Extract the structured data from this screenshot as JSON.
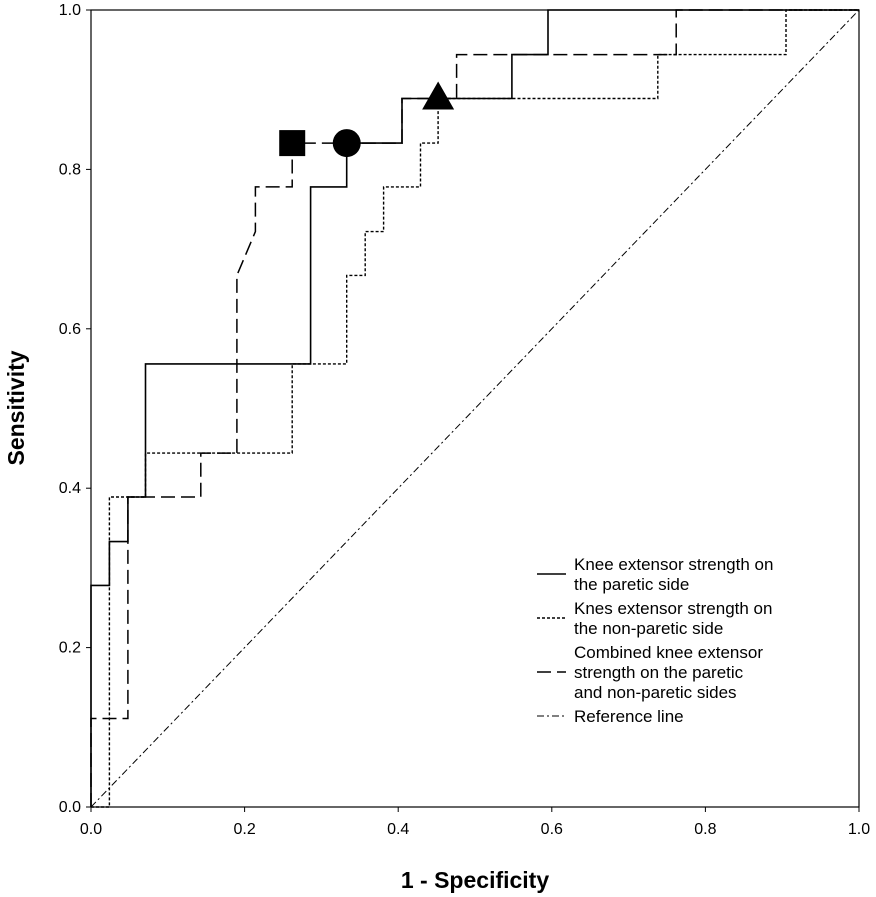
{
  "chart_data": {
    "type": "line",
    "title": "",
    "xlabel": "1 - Specificity",
    "ylabel": "Sensitivity",
    "xlim": [
      0.0,
      1.0
    ],
    "ylim": [
      0.0,
      1.0
    ],
    "xticks": [
      "0.0",
      "0.2",
      "0.4",
      "0.6",
      "0.8",
      "1.0"
    ],
    "yticks": [
      "0.0",
      "0.2",
      "0.4",
      "0.6",
      "0.8",
      "1.0"
    ],
    "grid": false,
    "legend_position": "bottom-right",
    "series": [
      {
        "name": "Knee extensor strength on the paretic side",
        "style": "solid",
        "color": "#000000",
        "x": [
          0.0,
          0.0,
          0.024,
          0.024,
          0.048,
          0.048,
          0.071,
          0.071,
          0.286,
          0.286,
          0.333,
          0.333,
          0.405,
          0.405,
          0.548,
          0.548,
          0.595,
          0.595,
          1.0
        ],
        "y": [
          0.0,
          0.278,
          0.278,
          0.333,
          0.333,
          0.389,
          0.389,
          0.556,
          0.556,
          0.778,
          0.778,
          0.833,
          0.833,
          0.889,
          0.889,
          0.944,
          0.944,
          1.0,
          1.0
        ]
      },
      {
        "name": "Knes extensor strength on the non-paretic side",
        "style": "dotted",
        "color": "#000000",
        "x": [
          0.0,
          0.024,
          0.024,
          0.071,
          0.071,
          0.143,
          0.143,
          0.262,
          0.262,
          0.333,
          0.333,
          0.357,
          0.357,
          0.381,
          0.381,
          0.429,
          0.429,
          0.452,
          0.452,
          0.738,
          0.738,
          0.905,
          0.905,
          1.0
        ],
        "y": [
          0.0,
          0.0,
          0.389,
          0.389,
          0.444,
          0.444,
          0.444,
          0.444,
          0.556,
          0.556,
          0.667,
          0.667,
          0.722,
          0.722,
          0.778,
          0.778,
          0.833,
          0.833,
          0.889,
          0.889,
          0.944,
          0.944,
          1.0,
          1.0
        ]
      },
      {
        "name": "Combined knee extensor strength on the paretic and non-paretic sides",
        "style": "long-dash",
        "color": "#000000",
        "x": [
          0.0,
          0.0,
          0.048,
          0.048,
          0.143,
          0.143,
          0.19,
          0.19,
          0.214,
          0.214,
          0.262,
          0.262,
          0.405,
          0.405,
          0.476,
          0.476,
          0.762,
          0.762,
          1.0
        ],
        "y": [
          0.0,
          0.111,
          0.111,
          0.389,
          0.389,
          0.444,
          0.444,
          0.667,
          0.722,
          0.778,
          0.778,
          0.833,
          0.833,
          0.889,
          0.889,
          0.944,
          0.944,
          1.0,
          1.0
        ]
      },
      {
        "name": "Reference line",
        "style": "dash-dot",
        "color": "#000000",
        "x": [
          0.0,
          1.0
        ],
        "y": [
          0.0,
          1.0
        ]
      }
    ],
    "markers": [
      {
        "shape": "square",
        "x": 0.262,
        "y": 0.833
      },
      {
        "shape": "circle",
        "x": 0.333,
        "y": 0.833
      },
      {
        "shape": "triangle",
        "x": 0.452,
        "y": 0.889
      }
    ],
    "legend": [
      {
        "style": "solid",
        "lines": [
          "Knee extensor strength on",
          "the paretic side"
        ]
      },
      {
        "style": "dotted",
        "lines": [
          "Knes extensor strength on",
          "the non-paretic side"
        ]
      },
      {
        "style": "long-dash",
        "lines": [
          "Combined knee extensor",
          "strength on the paretic",
          "and non-paretic sides"
        ]
      },
      {
        "style": "dash-dot",
        "lines": [
          "Reference line"
        ]
      }
    ]
  }
}
